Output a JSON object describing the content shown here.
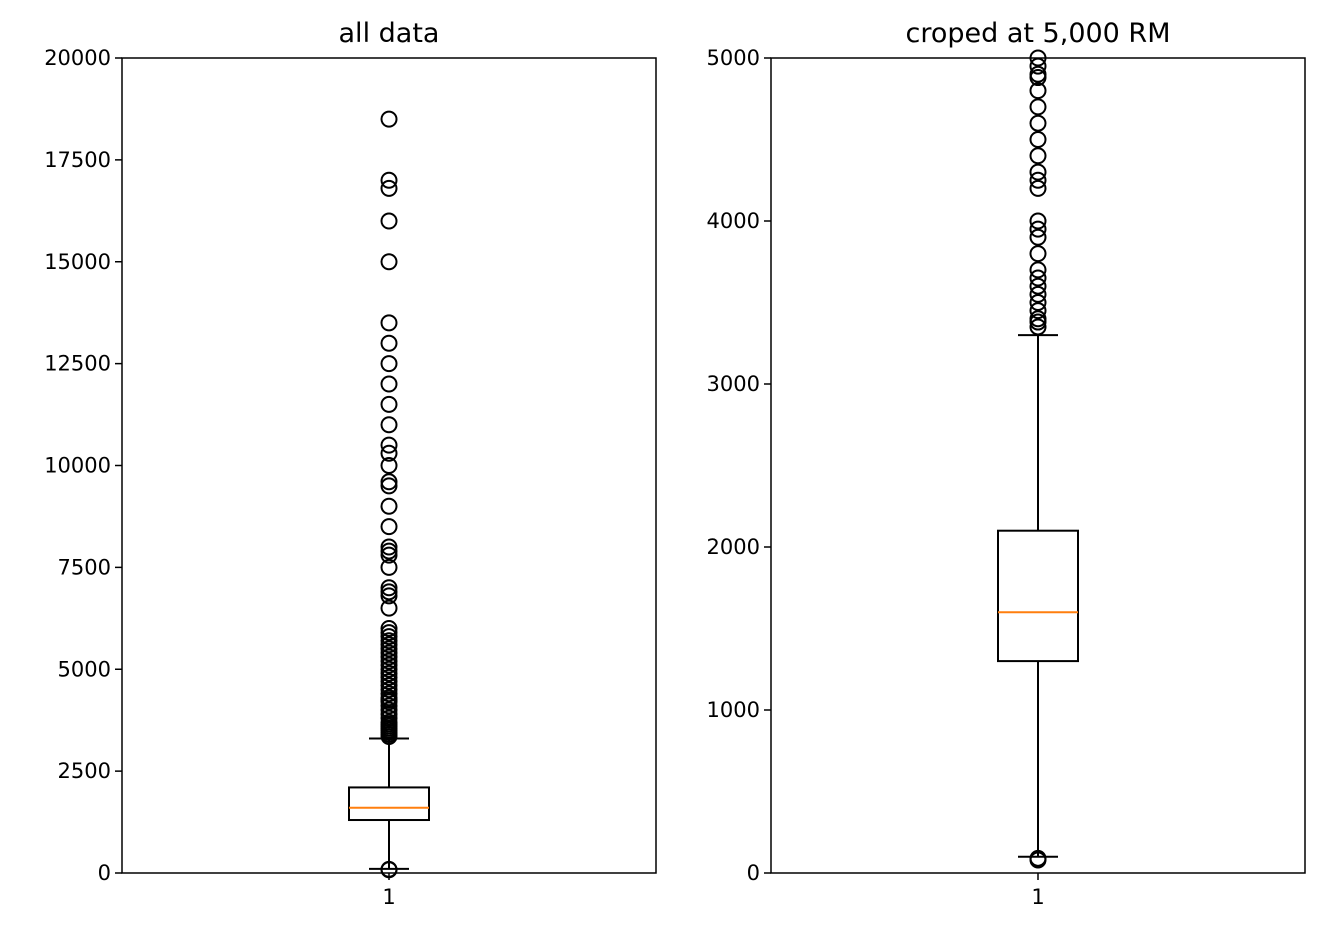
{
  "colors": {
    "box": "#000000",
    "median": "#ff7f0e",
    "flier": "#000000",
    "background": "#ffffff"
  },
  "chart_data": [
    {
      "type": "box",
      "title": "all data",
      "xlabel": "",
      "ylabel": "",
      "categories": [
        "1"
      ],
      "ylim": [
        0,
        20000
      ],
      "yticks": [
        0,
        2500,
        5000,
        7500,
        10000,
        12500,
        15000,
        17500,
        20000
      ],
      "yticklabels": [
        "0",
        "2500",
        "5000",
        "7500",
        "10000",
        "12500",
        "15000",
        "17500",
        "20000"
      ],
      "grid": false,
      "boxes": [
        {
          "label": "1",
          "whisker_low": 100,
          "q1": 1300,
          "median": 1600,
          "q3": 2100,
          "whisker_high": 3300,
          "fliers": [
            80,
            90,
            3350,
            3400,
            3450,
            3500,
            3550,
            3600,
            3650,
            3700,
            3800,
            3900,
            4000,
            4100,
            4200,
            4250,
            4300,
            4400,
            4500,
            4600,
            4700,
            4800,
            4900,
            5000,
            5100,
            5200,
            5300,
            5400,
            5500,
            5600,
            5700,
            5800,
            5900,
            6000,
            6500,
            6800,
            6900,
            7000,
            7500,
            7800,
            7900,
            8000,
            8500,
            9000,
            9500,
            9600,
            10000,
            10300,
            10500,
            11000,
            11500,
            12000,
            12500,
            13000,
            13500,
            15000,
            16000,
            16800,
            17000,
            18500
          ]
        }
      ]
    },
    {
      "type": "box",
      "title": "croped at 5,000 RM",
      "xlabel": "",
      "ylabel": "",
      "categories": [
        "1"
      ],
      "ylim": [
        0,
        5000
      ],
      "yticks": [
        0,
        1000,
        2000,
        3000,
        4000,
        5000
      ],
      "yticklabels": [
        "0",
        "1000",
        "2000",
        "3000",
        "4000",
        "5000"
      ],
      "grid": false,
      "boxes": [
        {
          "label": "1",
          "whisker_low": 100,
          "q1": 1300,
          "median": 1600,
          "q3": 2100,
          "whisker_high": 3300,
          "fliers": [
            80,
            90,
            3350,
            3380,
            3400,
            3450,
            3500,
            3550,
            3600,
            3650,
            3700,
            3800,
            3900,
            3950,
            4000,
            4200,
            4250,
            4300,
            4400,
            4500,
            4600,
            4700,
            4800,
            4880,
            4900,
            4950,
            5000
          ]
        }
      ]
    }
  ]
}
